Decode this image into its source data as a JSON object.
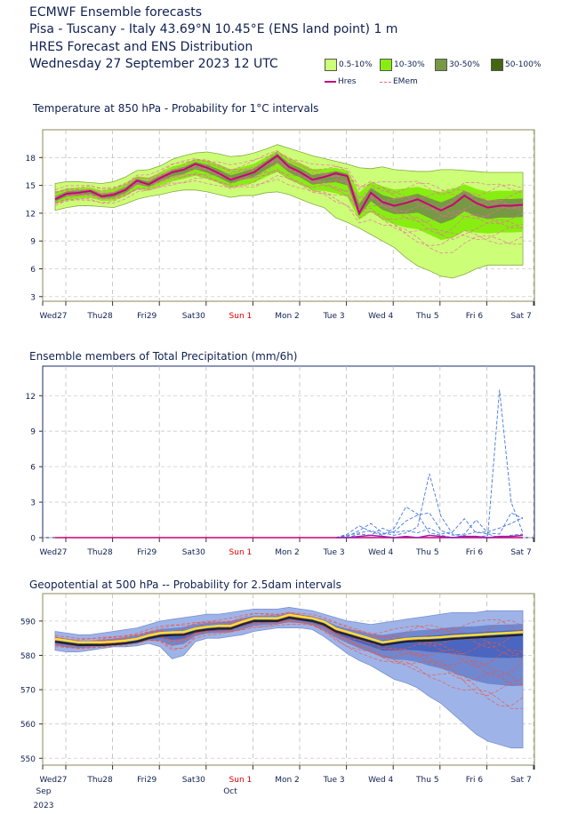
{
  "header": {
    "line1": "ECMWF Ensemble forecasts",
    "line2": "Pisa - Tuscany - Italy 43.69°N 10.45°E (ENS land point) 1 m",
    "line3": "HRES Forecast and ENS Distribution",
    "line4": "Wednesday 27 September 2023 12 UTC"
  },
  "legend": [
    {
      "label": "0.5-10%",
      "color": "#ccff77"
    },
    {
      "label": "10-30%",
      "color": "#88ee11"
    },
    {
      "label": "30-50%",
      "color": "#779944"
    },
    {
      "label": "50-100%",
      "color": "#446611"
    }
  ],
  "legend_lines": {
    "hres": "Hres",
    "emem": "EMem",
    "hres_color": "#cc0077",
    "emem_color": "#ee6677"
  },
  "xticks": [
    "Wed27",
    "Thu28",
    "Fri29",
    "Sat30",
    "Sun 1",
    "Mon 2",
    "Tue 3",
    "Wed 4",
    "Thu 5",
    "Fri 6",
    "Sat 7"
  ],
  "xtick_colors": {
    "Sun 1": "#dd0000"
  },
  "bottom_labels": {
    "month1": "Sep",
    "year": "2023",
    "month2": "Oct"
  },
  "chart_data": [
    {
      "type": "area",
      "title": "Temperature at 850 hPa - Probability for 1°C intervals",
      "ylim": [
        2.5,
        21
      ],
      "yticks": [
        3,
        6,
        9,
        12,
        15,
        18
      ],
      "x_days": [
        0,
        0.25,
        0.5,
        0.75,
        1,
        1.25,
        1.5,
        1.75,
        2,
        2.25,
        2.5,
        2.75,
        3,
        3.25,
        3.5,
        3.75,
        4,
        4.25,
        4.5,
        4.75,
        5,
        5.25,
        5.5,
        5.75,
        6,
        6.25,
        6.5,
        6.75,
        7,
        7.25,
        7.5,
        7.75,
        8,
        8.25,
        8.5,
        8.75,
        9,
        9.25,
        9.5,
        9.75,
        10
      ],
      "hres": [
        13.5,
        14.1,
        14.2,
        14.4,
        13.8,
        14.0,
        14.5,
        15.5,
        15.1,
        15.8,
        16.4,
        16.7,
        17.3,
        16.9,
        16.3,
        15.6,
        16.0,
        16.4,
        17.3,
        18.2,
        17.0,
        16.4,
        15.6,
        15.9,
        16.3,
        16.0,
        12.0,
        14.2,
        13.2,
        12.8,
        13.1,
        13.5,
        12.9,
        12.3,
        12.9,
        13.9,
        13.1,
        12.6,
        12.8,
        12.8,
        12.9
      ],
      "ens_min": [
        12.3,
        12.6,
        12.8,
        12.8,
        12.7,
        12.6,
        13.0,
        13.5,
        13.8,
        14.0,
        14.3,
        14.5,
        14.5,
        14.3,
        14.0,
        13.7,
        13.9,
        13.9,
        14.2,
        14.3,
        14.0,
        13.5,
        13.0,
        12.6,
        11.5,
        11.0,
        10.4,
        9.7,
        9.0,
        8.3,
        7.2,
        6.3,
        5.8,
        5.2,
        5.0,
        5.4,
        6.0,
        6.4,
        6.4,
        6.4,
        6.4
      ],
      "ens_max": [
        15.2,
        15.4,
        15.4,
        15.3,
        15.2,
        15.4,
        15.9,
        16.6,
        16.7,
        17.1,
        17.8,
        18.2,
        18.5,
        18.6,
        18.4,
        18.1,
        18.2,
        18.5,
        18.9,
        19.4,
        19.0,
        18.6,
        18.2,
        17.9,
        17.6,
        17.3,
        16.9,
        16.8,
        17.0,
        16.7,
        16.6,
        16.5,
        16.5,
        16.7,
        16.7,
        16.6,
        16.5,
        16.4,
        16.4,
        16.4,
        16.4
      ]
    },
    {
      "type": "line",
      "title": "Ensemble members of Total Precipitation (mm/6h)",
      "ylim": [
        0,
        14.5
      ],
      "yticks": [
        0,
        3,
        6,
        9,
        12
      ],
      "x_days": [
        6.0,
        6.25,
        6.5,
        6.75,
        7.0,
        7.25,
        7.5,
        7.75,
        8.0,
        8.25,
        8.5,
        8.75,
        9.0,
        9.25,
        9.5,
        9.75,
        10.0
      ],
      "members": [
        [
          0,
          0.3,
          1.0,
          0.5,
          0.2,
          0.8,
          2.6,
          2.0,
          0.4,
          0.2,
          0,
          0.2,
          0.5,
          0.3,
          0,
          0.2,
          0.3
        ],
        [
          0,
          0.1,
          0.6,
          1.2,
          0.4,
          0.2,
          0.4,
          0.9,
          5.4,
          1.8,
          0.3,
          0.1,
          0,
          0.2,
          12.5,
          3.0,
          0.4
        ],
        [
          0,
          0.2,
          0.4,
          0.6,
          0.3,
          0.5,
          1.4,
          1.9,
          2.1,
          0.6,
          0.2,
          0.3,
          1.5,
          0.4,
          0.3,
          2.1,
          1.6
        ],
        [
          0,
          0,
          0.3,
          0.2,
          0.8,
          0.4,
          0.6,
          0.4,
          0.8,
          0.3,
          0.5,
          1.6,
          0.4,
          0.5,
          0.8,
          1.2,
          1.7
        ]
      ],
      "hres": [
        0,
        0,
        0.1,
        0.2,
        0.1,
        0,
        0.1,
        0,
        0.2,
        0.1,
        0,
        0.1,
        0.1,
        0,
        0.1,
        0.1,
        0.2
      ]
    },
    {
      "type": "area",
      "title": "Geopotential at 500 hPa -- Probability for 2.5dam intervals",
      "ylim": [
        548,
        598
      ],
      "yticks": [
        550,
        560,
        570,
        580,
        590
      ],
      "x_days": [
        0,
        0.25,
        0.5,
        0.75,
        1,
        1.25,
        1.5,
        1.75,
        2,
        2.25,
        2.5,
        2.75,
        3,
        3.25,
        3.5,
        3.75,
        4,
        4.25,
        4.5,
        4.75,
        5,
        5.25,
        5.5,
        5.75,
        6,
        6.25,
        6.5,
        6.75,
        7,
        7.25,
        7.5,
        7.75,
        8,
        8.25,
        8.5,
        8.75,
        9,
        9.25,
        9.5,
        9.75,
        10
      ],
      "hres": [
        584,
        583.5,
        583,
        583,
        583,
        583.2,
        583.5,
        584,
        585,
        585.7,
        585.9,
        586,
        587,
        587.5,
        587.8,
        587.8,
        589,
        590,
        590,
        590,
        591,
        590.5,
        590,
        589,
        587,
        586,
        585,
        584,
        583,
        583.5,
        584,
        584.2,
        584.3,
        584.5,
        584.8,
        585,
        585.2,
        585.4,
        585.6,
        585.8,
        586
      ],
      "ens_min": [
        581.5,
        581,
        581,
        581.5,
        582,
        582.5,
        582.5,
        582.8,
        583.5,
        582.5,
        579,
        580,
        584,
        585,
        585,
        585.5,
        586,
        587,
        587.5,
        588,
        588,
        588,
        587.5,
        585.5,
        583,
        580.5,
        578.5,
        577,
        575,
        573,
        572,
        570.5,
        568,
        566,
        563,
        560,
        557,
        555,
        554,
        553,
        553
      ],
      "ens_max": [
        587,
        586.5,
        586,
        586,
        586.5,
        587,
        587.5,
        588,
        589,
        590,
        590.5,
        591,
        591.5,
        592,
        592,
        592.5,
        593,
        593.5,
        593.5,
        593.5,
        594,
        593.5,
        593,
        592,
        591,
        590,
        589.5,
        589,
        589.5,
        590,
        590.5,
        591,
        591.5,
        592,
        592.5,
        592.5,
        592.5,
        593,
        593,
        593,
        593
      ]
    }
  ]
}
